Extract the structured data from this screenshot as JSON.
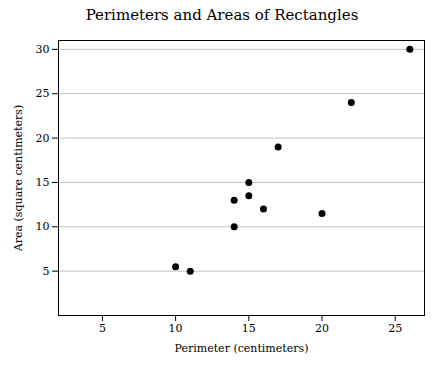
{
  "chart_data": {
    "type": "scatter",
    "title": "Perimeters and Areas of Rectangles",
    "xlabel": "Perimeter (centimeters)",
    "ylabel": "Area (square centimeters)",
    "x": [
      10,
      11,
      14,
      14,
      15,
      15,
      16,
      17,
      20,
      22,
      26
    ],
    "values": [
      5.5,
      5,
      10,
      13,
      13.5,
      15,
      12,
      19,
      11.5,
      24,
      30
    ],
    "color": "black",
    "xlim": [
      2,
      27
    ],
    "ylim": [
      0,
      31
    ],
    "xticks": [
      5,
      10,
      15,
      20,
      25
    ],
    "yticks": [
      5,
      10,
      15,
      20,
      25,
      30
    ],
    "grid": "y"
  }
}
